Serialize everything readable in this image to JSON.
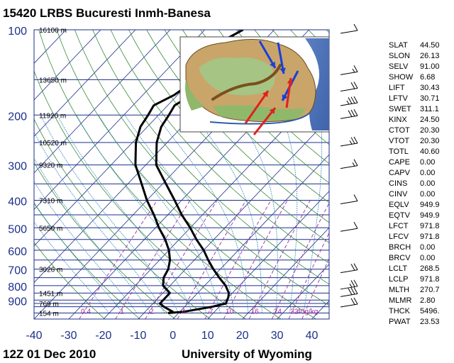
{
  "header": {
    "title": "15420 LRBS Bucuresti Inmh-Banesa"
  },
  "footer": {
    "time_label": "12Z 01 Dec 2010",
    "source_label": "University of Wyoming"
  },
  "stats": [
    {
      "label": "SLAT",
      "value": "44.50"
    },
    {
      "label": "SLON",
      "value": "26.13"
    },
    {
      "label": "SELV",
      "value": "91.00"
    },
    {
      "label": "SHOW",
      "value": "6.68"
    },
    {
      "label": "LIFT",
      "value": "30.43"
    },
    {
      "label": "LFTV",
      "value": "30.71"
    },
    {
      "label": "SWET",
      "value": "311.1"
    },
    {
      "label": "KINX",
      "value": "24.50"
    },
    {
      "label": "CTOT",
      "value": "20.30"
    },
    {
      "label": "VTOT",
      "value": "20.30"
    },
    {
      "label": "TOTL",
      "value": "40.60"
    },
    {
      "label": "CAPE",
      "value": "0.00"
    },
    {
      "label": "CAPV",
      "value": "0.00"
    },
    {
      "label": "CINS",
      "value": "0.00"
    },
    {
      "label": "CINV",
      "value": "0.00"
    },
    {
      "label": "EQLV",
      "value": "949.9"
    },
    {
      "label": "EQTV",
      "value": "949.9"
    },
    {
      "label": "LFCT",
      "value": "971.8"
    },
    {
      "label": "LFCV",
      "value": "971.8"
    },
    {
      "label": "BRCH",
      "value": "0.00"
    },
    {
      "label": "BRCV",
      "value": "0.00"
    },
    {
      "label": "LCLT",
      "value": "268.5"
    },
    {
      "label": "LCLP",
      "value": "971.8"
    },
    {
      "label": "MLTH",
      "value": "270.7"
    },
    {
      "label": "MLMR",
      "value": "2.80"
    },
    {
      "label": "THCK",
      "value": "5496."
    },
    {
      "label": "PWAT",
      "value": "23.53"
    }
  ],
  "chart_data": {
    "type": "skew-t",
    "x_axis": {
      "ticks": [
        -40,
        -30,
        -20,
        -10,
        0,
        10,
        20,
        30,
        40
      ],
      "range": [
        -40,
        45
      ]
    },
    "y_axis": {
      "scale": "log",
      "ticks": [
        100,
        200,
        300,
        400,
        500,
        600,
        700,
        800,
        900
      ],
      "range": [
        1050,
        100
      ]
    },
    "height_labels": [
      {
        "p": 100,
        "text": "16100 m"
      },
      {
        "p": 150,
        "text": "13650 m"
      },
      {
        "p": 200,
        "text": "11920 m"
      },
      {
        "p": 250,
        "text": "10520 m"
      },
      {
        "p": 300,
        "text": "9320 m"
      },
      {
        "p": 400,
        "text": "7310 m"
      },
      {
        "p": 500,
        "text": "5650 m"
      },
      {
        "p": 700,
        "text": "3026 m"
      },
      {
        "p": 850,
        "text": "1451 m"
      },
      {
        "p": 925,
        "text": "769 m"
      },
      {
        "p": 1000,
        "text": "154 m"
      }
    ],
    "mixing_ratio_labels": [
      "0.4",
      "1",
      "2",
      "4",
      "7",
      "10",
      "16",
      "24",
      "32",
      "40g/kg"
    ],
    "temperature": [
      {
        "p": 1000,
        "t": -3
      },
      {
        "p": 990,
        "t": 1
      },
      {
        "p": 950,
        "t": 8
      },
      {
        "p": 925,
        "t": 11
      },
      {
        "p": 880,
        "t": 10
      },
      {
        "p": 850,
        "t": 9
      },
      {
        "p": 800,
        "t": 6
      },
      {
        "p": 750,
        "t": 2
      },
      {
        "p": 700,
        "t": -2
      },
      {
        "p": 650,
        "t": -6
      },
      {
        "p": 600,
        "t": -10
      },
      {
        "p": 550,
        "t": -15
      },
      {
        "p": 500,
        "t": -20
      },
      {
        "p": 450,
        "t": -26
      },
      {
        "p": 400,
        "t": -32
      },
      {
        "p": 350,
        "t": -39
      },
      {
        "p": 300,
        "t": -47
      },
      {
        "p": 250,
        "t": -53
      },
      {
        "p": 220,
        "t": -56
      },
      {
        "p": 200,
        "t": -57
      },
      {
        "p": 185,
        "t": -58
      },
      {
        "p": 170,
        "t": -56
      },
      {
        "p": 160,
        "t": -53
      },
      {
        "p": 150,
        "t": -56
      },
      {
        "p": 140,
        "t": -57
      },
      {
        "p": 130,
        "t": -58
      },
      {
        "p": 120,
        "t": -61
      },
      {
        "p": 110,
        "t": -62
      },
      {
        "p": 100,
        "t": -59
      }
    ],
    "dewpoint": [
      {
        "p": 1000,
        "t": -3
      },
      {
        "p": 990,
        "t": -2
      },
      {
        "p": 950,
        "t": -6
      },
      {
        "p": 925,
        "t": -8
      },
      {
        "p": 880,
        "t": -8
      },
      {
        "p": 850,
        "t": -8
      },
      {
        "p": 800,
        "t": -12
      },
      {
        "p": 750,
        "t": -14
      },
      {
        "p": 700,
        "t": -15
      },
      {
        "p": 650,
        "t": -17
      },
      {
        "p": 600,
        "t": -20
      },
      {
        "p": 550,
        "t": -24
      },
      {
        "p": 500,
        "t": -29
      },
      {
        "p": 450,
        "t": -34
      },
      {
        "p": 400,
        "t": -40
      },
      {
        "p": 350,
        "t": -46
      },
      {
        "p": 300,
        "t": -53
      },
      {
        "p": 250,
        "t": -59
      },
      {
        "p": 220,
        "t": -62
      },
      {
        "p": 200,
        "t": -63
      },
      {
        "p": 185,
        "t": -64
      },
      {
        "p": 170,
        "t": -61
      },
      {
        "p": 160,
        "t": -60
      }
    ],
    "wind_barbs": [
      {
        "p": 100,
        "flags": 0,
        "barbs": 1,
        "half": 0
      },
      {
        "p": 140,
        "flags": 0,
        "barbs": 1,
        "half": 1
      },
      {
        "p": 160,
        "flags": 0,
        "barbs": 2,
        "half": 0
      },
      {
        "p": 180,
        "flags": 0,
        "barbs": 3,
        "half": 1
      },
      {
        "p": 200,
        "flags": 0,
        "barbs": 3,
        "half": 0
      },
      {
        "p": 250,
        "flags": 0,
        "barbs": 2,
        "half": 1
      },
      {
        "p": 300,
        "flags": 0,
        "barbs": 1,
        "half": 1
      },
      {
        "p": 400,
        "flags": 0,
        "barbs": 1,
        "half": 0
      },
      {
        "p": 500,
        "flags": 0,
        "barbs": 1,
        "half": 0
      },
      {
        "p": 700,
        "flags": 0,
        "barbs": 2,
        "half": 0
      },
      {
        "p": 800,
        "flags": 0,
        "barbs": 2,
        "half": 1
      },
      {
        "p": 850,
        "flags": 0,
        "barbs": 3,
        "half": 0
      },
      {
        "p": 925,
        "flags": 0,
        "barbs": 2,
        "half": 0
      }
    ],
    "colors": {
      "isobar": "#1c2f8a",
      "isotherm": "#1c2f8a",
      "dry_adiabat": "#3a8a3a",
      "moist_adiabat": "#2a7cb5",
      "mixing_ratio": "#9b2fa3",
      "sounding": "#000000",
      "axis_label": "#1c2f8a"
    },
    "inset_map": {
      "description": "Romania relief map with airflow arrows",
      "arrow_colors": [
        "#1a3fd9",
        "#e0221d"
      ]
    }
  }
}
